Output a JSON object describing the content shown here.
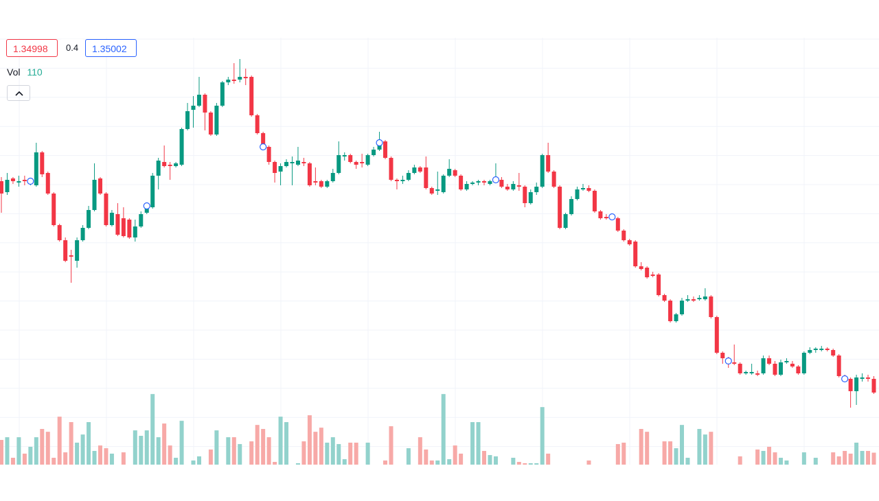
{
  "chart_data": {
    "type": "candlestick",
    "bid": "1.34998",
    "spread": "0.4",
    "ask": "1.35002",
    "volume_label": "Vol",
    "up_color": "#089981",
    "down_color": "#f23645",
    "up_volume_color": "#92d2cc",
    "down_volume_color": "#f7a9a7",
    "ylim": [
      1.3415,
      1.378
    ],
    "volume_lim": [
      0,
      650
    ],
    "grid": true,
    "marker_indices": [
      5,
      25,
      45,
      65,
      85,
      105,
      125,
      145
    ],
    "open": [
      1.3648,
      1.364,
      1.365,
      1.3647,
      1.3649,
      1.3647,
      1.3645,
      1.3669,
      1.3654,
      1.3639,
      1.3616,
      1.3605,
      1.3594,
      1.359,
      1.3605,
      1.3614,
      1.3627,
      1.365,
      1.3639,
      1.3616,
      1.3624,
      1.3621,
      1.362,
      1.3607,
      1.3615,
      1.3625,
      1.3629,
      1.3652,
      1.3662,
      1.366,
      1.3659,
      1.366,
      1.3686,
      1.37,
      1.3703,
      1.3711,
      1.3698,
      1.3682,
      1.3703,
      1.372,
      1.3722,
      1.3722,
      1.3724,
      1.3724,
      1.3696,
      1.3683,
      1.3673,
      1.3662,
      1.3655,
      1.3659,
      1.3661,
      1.366,
      1.3662,
      1.3661,
      1.3648,
      1.3648,
      1.3644,
      1.3648,
      1.3654,
      1.3666,
      1.3667,
      1.3662,
      1.3662,
      1.366,
      1.3667,
      1.3671,
      1.3677,
      1.3665,
      1.3649,
      1.3648,
      1.3649,
      1.3654,
      1.3658,
      1.3658,
      1.3643,
      1.3641,
      1.364,
      1.3652,
      1.3656,
      1.3652,
      1.3642,
      1.3646,
      1.3647,
      1.3648,
      1.3646,
      1.3648,
      1.3649,
      1.3644,
      1.3642,
      1.3645,
      1.3644,
      1.3632,
      1.364,
      1.3644,
      1.3667,
      1.3655,
      1.3644,
      1.3614,
      1.3624,
      1.3635,
      1.3642,
      1.3643,
      1.3641,
      1.3626,
      1.3622,
      1.3621,
      1.3621,
      1.3612,
      1.3605,
      1.3604,
      1.3586,
      1.3585,
      1.358,
      1.358,
      1.3565,
      1.3561,
      1.3546,
      1.3551,
      1.3561,
      1.3562,
      1.3562,
      1.3562,
      1.3564,
      1.3549,
      1.3523,
      1.3518,
      1.3516,
      1.3515,
      1.3508,
      1.3508,
      1.3508,
      1.3508,
      1.3519,
      1.3515,
      1.3507,
      1.3516,
      1.3515,
      1.3513,
      1.3508,
      1.3523,
      1.3525,
      1.3525,
      1.3526,
      1.3525,
      1.3521,
      1.3505,
      1.3504,
      1.3495,
      1.3504,
      1.3505,
      1.3504
    ],
    "high": [
      1.3651,
      1.3654,
      1.3651,
      1.3652,
      1.3652,
      1.365,
      1.3676,
      1.367,
      1.3655,
      1.364,
      1.3617,
      1.3607,
      1.3598,
      1.3607,
      1.3616,
      1.363,
      1.3661,
      1.3651,
      1.364,
      1.3627,
      1.3632,
      1.3629,
      1.3621,
      1.362,
      1.3626,
      1.3632,
      1.3654,
      1.3665,
      1.3674,
      1.3662,
      1.3662,
      1.3687,
      1.3705,
      1.371,
      1.3724,
      1.3712,
      1.3699,
      1.3705,
      1.3721,
      1.3724,
      1.3734,
      1.3737,
      1.373,
      1.3725,
      1.3697,
      1.3684,
      1.3674,
      1.3663,
      1.3661,
      1.3664,
      1.3666,
      1.3673,
      1.3665,
      1.3662,
      1.3658,
      1.3649,
      1.3649,
      1.3657,
      1.3677,
      1.3669,
      1.3668,
      1.3663,
      1.3668,
      1.3668,
      1.3673,
      1.3684,
      1.3678,
      1.3666,
      1.365,
      1.3652,
      1.3656,
      1.366,
      1.3659,
      1.3666,
      1.3644,
      1.3655,
      1.3653,
      1.3664,
      1.3657,
      1.3653,
      1.3648,
      1.3648,
      1.3649,
      1.3649,
      1.3649,
      1.3661,
      1.3651,
      1.3646,
      1.3648,
      1.3654,
      1.3645,
      1.3642,
      1.3647,
      1.3668,
      1.3676,
      1.3656,
      1.3645,
      1.3625,
      1.3637,
      1.3644,
      1.3646,
      1.3645,
      1.3642,
      1.3627,
      1.3624,
      1.3623,
      1.3622,
      1.3613,
      1.3606,
      1.3605,
      1.3589,
      1.3586,
      1.3582,
      1.3581,
      1.3566,
      1.3562,
      1.3552,
      1.3563,
      1.3565,
      1.3564,
      1.3565,
      1.357,
      1.3565,
      1.355,
      1.3524,
      1.352,
      1.3529,
      1.3516,
      1.351,
      1.3515,
      1.351,
      1.3521,
      1.3521,
      1.3517,
      1.3518,
      1.3519,
      1.3517,
      1.3514,
      1.3524,
      1.3527,
      1.3527,
      1.3528,
      1.3527,
      1.3526,
      1.3522,
      1.3507,
      1.3505,
      1.3507,
      1.3508,
      1.3507,
      1.3506
    ],
    "low": [
      1.3625,
      1.3638,
      1.3646,
      1.3644,
      1.3645,
      1.3645,
      1.3644,
      1.3651,
      1.3638,
      1.3615,
      1.3604,
      1.3589,
      1.3574,
      1.3585,
      1.3604,
      1.3613,
      1.3626,
      1.3638,
      1.3615,
      1.3615,
      1.3608,
      1.3607,
      1.3606,
      1.3604,
      1.3614,
      1.3624,
      1.3628,
      1.3642,
      1.3658,
      1.3649,
      1.3658,
      1.3659,
      1.3685,
      1.3687,
      1.3702,
      1.3685,
      1.3681,
      1.3681,
      1.3702,
      1.3718,
      1.3719,
      1.372,
      1.3718,
      1.3695,
      1.3682,
      1.3672,
      1.366,
      1.3647,
      1.3645,
      1.3658,
      1.3645,
      1.3659,
      1.3659,
      1.3644,
      1.3645,
      1.3643,
      1.3643,
      1.3647,
      1.3653,
      1.3663,
      1.3661,
      1.3657,
      1.3658,
      1.3659,
      1.3666,
      1.367,
      1.3664,
      1.3648,
      1.3642,
      1.3646,
      1.3648,
      1.3653,
      1.3654,
      1.3642,
      1.3638,
      1.3638,
      1.3639,
      1.3651,
      1.3651,
      1.3641,
      1.3641,
      1.3645,
      1.3645,
      1.3645,
      1.3645,
      1.3647,
      1.3643,
      1.3641,
      1.3641,
      1.3641,
      1.3629,
      1.3631,
      1.3638,
      1.3643,
      1.3654,
      1.3643,
      1.3613,
      1.3613,
      1.3623,
      1.3634,
      1.3641,
      1.364,
      1.3625,
      1.362,
      1.362,
      1.362,
      1.3611,
      1.3604,
      1.3601,
      1.3585,
      1.3583,
      1.3577,
      1.3578,
      1.3564,
      1.356,
      1.3545,
      1.3545,
      1.355,
      1.356,
      1.356,
      1.3561,
      1.3561,
      1.3548,
      1.3522,
      1.3515,
      1.3512,
      1.3514,
      1.3507,
      1.3507,
      1.3507,
      1.3506,
      1.3507,
      1.3514,
      1.3506,
      1.3506,
      1.3515,
      1.3512,
      1.3507,
      1.3507,
      1.3522,
      1.3523,
      1.3524,
      1.3524,
      1.352,
      1.3505,
      1.3502,
      1.3483,
      1.3485,
      1.3502,
      1.3502,
      1.3493
    ],
    "close": [
      1.3639,
      1.3649,
      1.3648,
      1.3648,
      1.3648,
      1.3648,
      1.3669,
      1.3653,
      1.3639,
      1.3616,
      1.3605,
      1.359,
      1.3593,
      1.3605,
      1.3614,
      1.3627,
      1.3649,
      1.3639,
      1.3616,
      1.3625,
      1.3609,
      1.3608,
      1.3607,
      1.3615,
      1.3624,
      1.363,
      1.3652,
      1.3663,
      1.3659,
      1.3659,
      1.3661,
      1.3686,
      1.3699,
      1.3703,
      1.3711,
      1.3698,
      1.3682,
      1.3703,
      1.372,
      1.3722,
      1.3721,
      1.3724,
      1.3723,
      1.3696,
      1.3683,
      1.3673,
      1.3662,
      1.3654,
      1.3659,
      1.3662,
      1.3662,
      1.3663,
      1.3661,
      1.3645,
      1.3647,
      1.3644,
      1.3648,
      1.3654,
      1.3667,
      1.3667,
      1.3662,
      1.366,
      1.3661,
      1.3667,
      1.3671,
      1.3676,
      1.3665,
      1.3649,
      1.3648,
      1.3649,
      1.3654,
      1.3658,
      1.3655,
      1.3643,
      1.3639,
      1.3642,
      1.3652,
      1.3657,
      1.3652,
      1.3642,
      1.3646,
      1.3647,
      1.3648,
      1.3647,
      1.3648,
      1.3649,
      1.3644,
      1.3642,
      1.3646,
      1.3644,
      1.3632,
      1.364,
      1.3644,
      1.3667,
      1.3655,
      1.3644,
      1.3614,
      1.3624,
      1.3635,
      1.3642,
      1.3643,
      1.3641,
      1.3626,
      1.3621,
      1.3621,
      1.3622,
      1.3612,
      1.3605,
      1.3602,
      1.3586,
      1.3584,
      1.3578,
      1.3579,
      1.3565,
      1.3561,
      1.3546,
      1.3551,
      1.3561,
      1.3562,
      1.3561,
      1.3563,
      1.3564,
      1.3549,
      1.3523,
      1.3519,
      1.3517,
      1.3515,
      1.3508,
      1.3509,
      1.3509,
      1.3507,
      1.3519,
      1.3515,
      1.3507,
      1.3516,
      1.3517,
      1.3513,
      1.3508,
      1.3523,
      1.3525,
      1.3526,
      1.3526,
      1.3525,
      1.3521,
      1.3506,
      1.3504,
      1.3495,
      1.3505,
      1.3505,
      1.3504,
      1.3494
    ],
    "volume": [
      227,
      252,
      63,
      252,
      101,
      164,
      252,
      328,
      302,
      63,
      441,
      113,
      391,
      202,
      277,
      391,
      126,
      176,
      151,
      101,
      0,
      113,
      0,
      315,
      265,
      315,
      649,
      252,
      378,
      176,
      63,
      403,
      0,
      38,
      76,
      0,
      139,
      315,
      0,
      252,
      252,
      189,
      0,
      214,
      365,
      328,
      252,
      25,
      441,
      391,
      0,
      13,
      214,
      454,
      302,
      340,
      202,
      252,
      189,
      50,
      202,
      202,
      0,
      202,
      0,
      0,
      38,
      353,
      0,
      0,
      151,
      0,
      252,
      139,
      38,
      38,
      649,
      50,
      176,
      101,
      0,
      391,
      391,
      126,
      88,
      76,
      0,
      0,
      63,
      25,
      13,
      13,
      13,
      529,
      101,
      0,
      0,
      0,
      0,
      0,
      0,
      38,
      0,
      0,
      0,
      0,
      189,
      202,
      0,
      0,
      328,
      302,
      0,
      0,
      214,
      214,
      151,
      365,
      63,
      0,
      328,
      277,
      302,
      0,
      0,
      0,
      0,
      76,
      0,
      0,
      139,
      126,
      164,
      113,
      63,
      38,
      0,
      0,
      113,
      0,
      63,
      0,
      0,
      113,
      76,
      126,
      101,
      202,
      126,
      126,
      110
    ]
  }
}
